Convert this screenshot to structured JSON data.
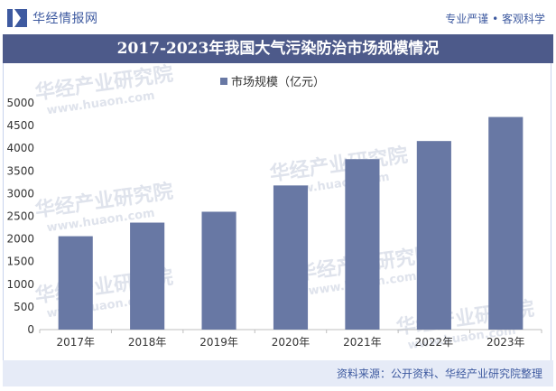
{
  "header": {
    "brand": "华经情报网",
    "slogan": "专业严谨 • 客观科学"
  },
  "chart_data": {
    "type": "bar",
    "title": "2017-2023年我国大气污染防治市场规模情况",
    "categories": [
      "2017年",
      "2018年",
      "2019年",
      "2020年",
      "2021年",
      "2022年",
      "2023年"
    ],
    "series": [
      {
        "name": "市场规模（亿元）",
        "values": [
          2060,
          2360,
          2600,
          3180,
          3760,
          4160,
          4690
        ]
      }
    ],
    "ylim": [
      0,
      5000
    ],
    "yticks": [
      0,
      500,
      1000,
      1500,
      2000,
      2500,
      3000,
      3500,
      4000,
      4500,
      5000
    ],
    "xlabel": "",
    "ylabel": "",
    "legend_position": "top-center",
    "bar_color": "#6878a4"
  },
  "footer": {
    "source": "资料来源：公开资料、华经产业研究院整理"
  },
  "watermarks": [
    "华经产业研究院",
    "www.huaon.com"
  ]
}
